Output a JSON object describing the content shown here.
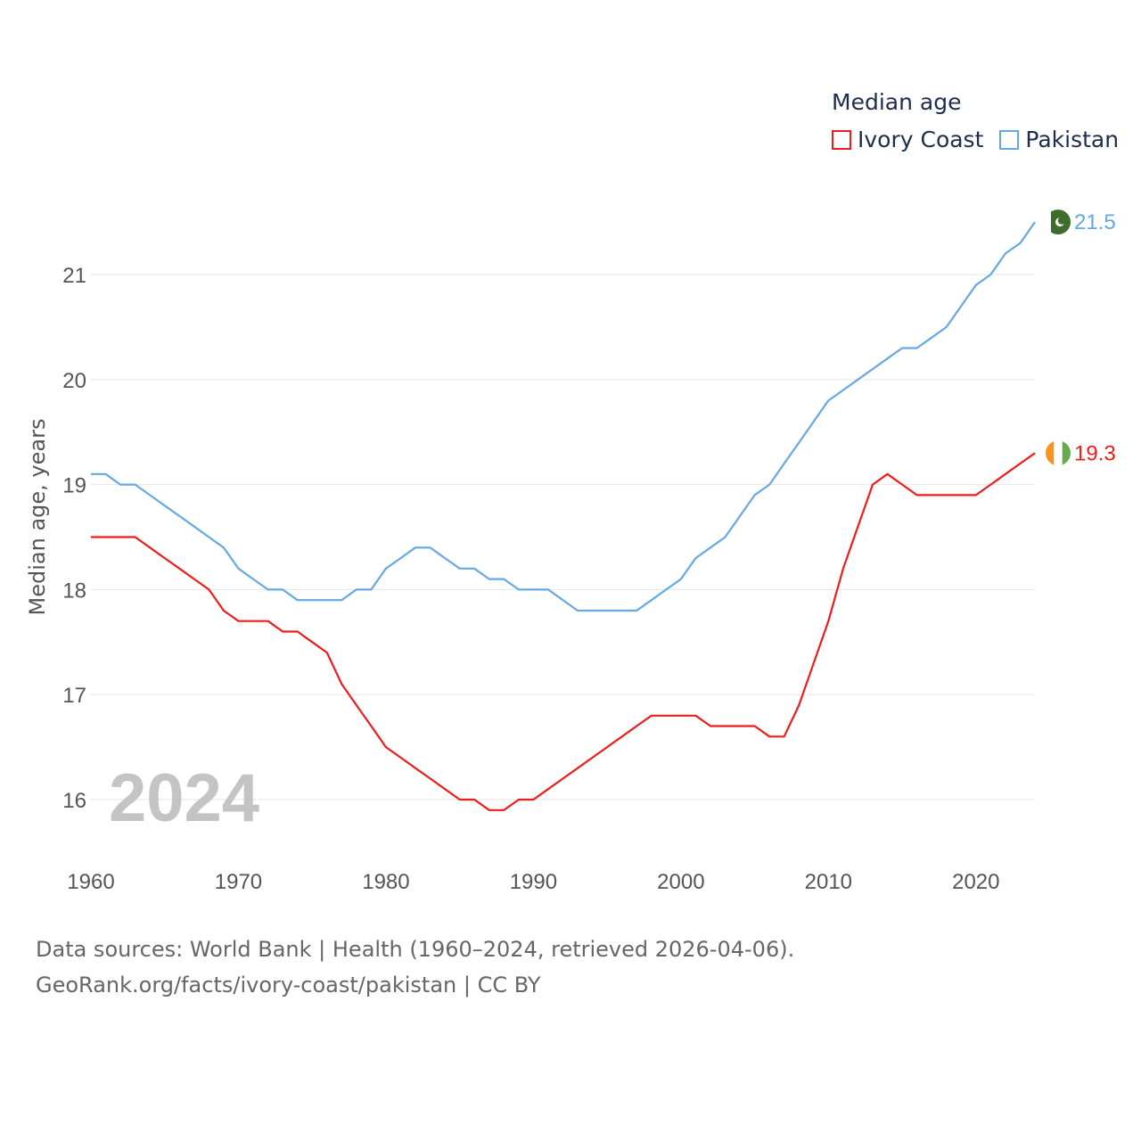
{
  "legend": {
    "title": "Median age",
    "items": [
      {
        "label": "Ivory Coast",
        "color": "#ef1c1c"
      },
      {
        "label": "Pakistan",
        "color": "#64a8e4"
      }
    ]
  },
  "year_watermark": "2024",
  "source": {
    "line1": "Data sources: World Bank | Health (1960–2024, retrieved 2026-04-06).",
    "line2": "GeoRank.org/facts/ivory-coast/pakistan | CC BY"
  },
  "chart_data": {
    "type": "line",
    "title": "Median age",
    "xlabel": "",
    "ylabel": "Median age, years",
    "xlim": [
      1960,
      2024
    ],
    "ylim": [
      15.5,
      21.7
    ],
    "xticks": [
      1960,
      1970,
      1980,
      1990,
      2000,
      2010,
      2020
    ],
    "yticks": [
      16,
      17,
      18,
      19,
      20,
      21
    ],
    "grid": true,
    "legend_position": "top-right",
    "x": [
      1960,
      1961,
      1962,
      1963,
      1964,
      1965,
      1966,
      1967,
      1968,
      1969,
      1970,
      1971,
      1972,
      1973,
      1974,
      1975,
      1976,
      1977,
      1978,
      1979,
      1980,
      1981,
      1982,
      1983,
      1984,
      1985,
      1986,
      1987,
      1988,
      1989,
      1990,
      1991,
      1992,
      1993,
      1994,
      1995,
      1996,
      1997,
      1998,
      1999,
      2000,
      2001,
      2002,
      2003,
      2004,
      2005,
      2006,
      2007,
      2008,
      2009,
      2010,
      2011,
      2012,
      2013,
      2014,
      2015,
      2016,
      2017,
      2018,
      2019,
      2020,
      2021,
      2022,
      2023,
      2024
    ],
    "series": [
      {
        "name": "Ivory Coast",
        "color": "#ef1c1c",
        "end_label": "19.3",
        "values": [
          18.5,
          18.5,
          18.5,
          18.5,
          18.4,
          18.3,
          18.2,
          18.1,
          18.0,
          17.8,
          17.7,
          17.7,
          17.7,
          17.6,
          17.6,
          17.5,
          17.4,
          17.1,
          16.9,
          16.7,
          16.5,
          16.4,
          16.3,
          16.2,
          16.1,
          16.0,
          16.0,
          15.9,
          15.9,
          16.0,
          16.0,
          16.1,
          16.2,
          16.3,
          16.4,
          16.5,
          16.6,
          16.7,
          16.8,
          16.8,
          16.8,
          16.8,
          16.7,
          16.7,
          16.7,
          16.7,
          16.6,
          16.6,
          16.9,
          17.3,
          17.7,
          18.2,
          18.6,
          19.0,
          19.1,
          19.0,
          18.9,
          18.9,
          18.9,
          18.9,
          18.9,
          19.0,
          19.1,
          19.2,
          19.3
        ]
      },
      {
        "name": "Pakistan",
        "color": "#64a8e4",
        "end_label": "21.5",
        "values": [
          19.1,
          19.1,
          19.0,
          19.0,
          18.9,
          18.8,
          18.7,
          18.6,
          18.5,
          18.4,
          18.2,
          18.1,
          18.0,
          18.0,
          17.9,
          17.9,
          17.9,
          17.9,
          18.0,
          18.0,
          18.2,
          18.3,
          18.4,
          18.4,
          18.3,
          18.2,
          18.2,
          18.1,
          18.1,
          18.0,
          18.0,
          18.0,
          17.9,
          17.8,
          17.8,
          17.8,
          17.8,
          17.8,
          17.9,
          18.0,
          18.1,
          18.3,
          18.4,
          18.5,
          18.7,
          18.9,
          19.0,
          19.2,
          19.4,
          19.6,
          19.8,
          19.9,
          20.0,
          20.1,
          20.2,
          20.3,
          20.3,
          20.4,
          20.5,
          20.7,
          20.9,
          21.0,
          21.2,
          21.3,
          21.5
        ]
      }
    ]
  }
}
